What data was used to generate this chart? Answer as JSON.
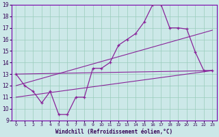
{
  "xlabel": "Windchill (Refroidissement éolien,°C)",
  "bg_color": "#cce8e8",
  "grid_color": "#99ccbb",
  "line_color": "#882299",
  "xlim": [
    -0.5,
    23.5
  ],
  "ylim": [
    9,
    19
  ],
  "xticks": [
    0,
    1,
    2,
    3,
    4,
    5,
    6,
    7,
    8,
    9,
    10,
    11,
    12,
    13,
    14,
    15,
    16,
    17,
    18,
    19,
    20,
    21,
    22,
    23
  ],
  "yticks": [
    9,
    10,
    11,
    12,
    13,
    14,
    15,
    16,
    17,
    18,
    19
  ],
  "series1_x": [
    0,
    1,
    2,
    3,
    4,
    5,
    6,
    7,
    8,
    9,
    10,
    11,
    12,
    13,
    14,
    15,
    16,
    17,
    18,
    19,
    20,
    21,
    22,
    23
  ],
  "series1_y": [
    13,
    12,
    11.5,
    10.5,
    11.5,
    9.5,
    9.5,
    11,
    11,
    13.5,
    13.5,
    14,
    15.5,
    16,
    16.5,
    17.5,
    19,
    19,
    17,
    17,
    16.9,
    14.9,
    13.3,
    13.3
  ],
  "series2_x": [
    0,
    23
  ],
  "series2_y": [
    13,
    13.3
  ],
  "series3_x": [
    0,
    23
  ],
  "series3_y": [
    12,
    16.8
  ],
  "series4_x": [
    0,
    23
  ],
  "series4_y": [
    11,
    13.3
  ]
}
